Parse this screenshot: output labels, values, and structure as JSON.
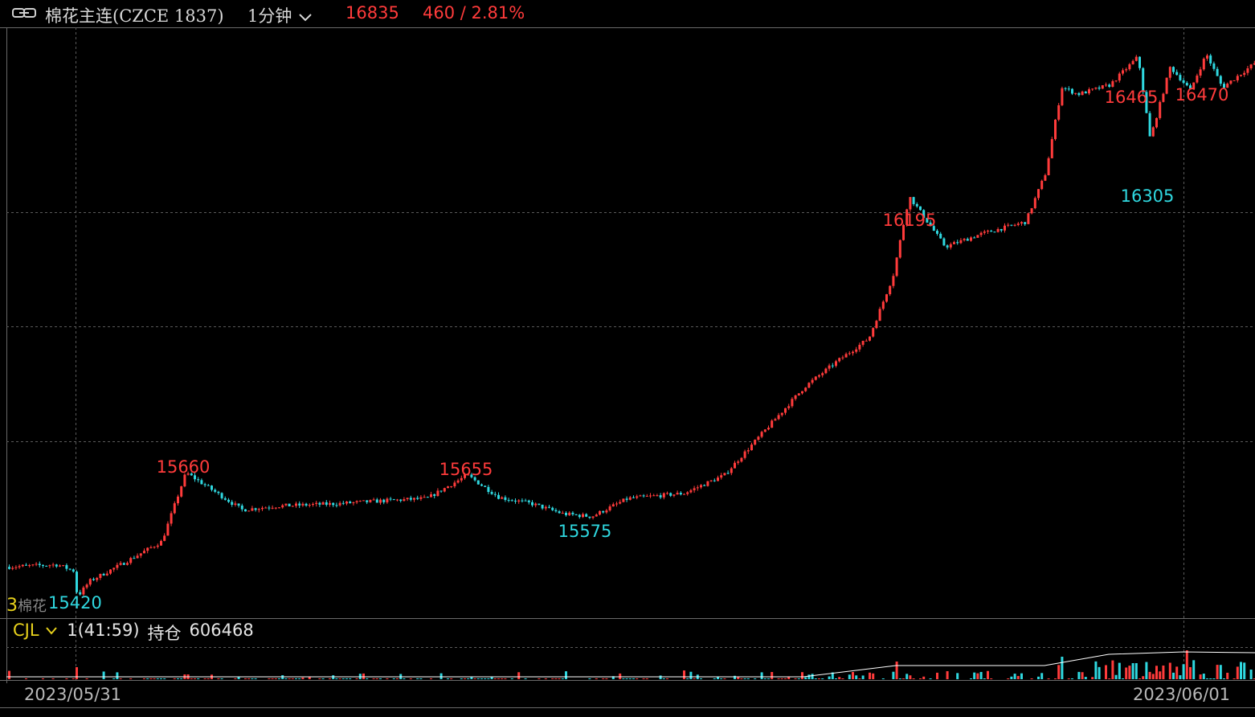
{
  "header": {
    "link_icon": "link-icon",
    "symbol": "棉花主连(CZCE 1837)",
    "period": "1分钟",
    "price": "16835",
    "change": "460 / 2.81%"
  },
  "colors": {
    "up": "#ff3b3b",
    "down": "#2fd8e0",
    "grid": "#5a5a5a",
    "vol_line": "#ffffff",
    "indicator": "#e8d21c"
  },
  "main": {
    "corner_text": "3",
    "corner_label": "棉花"
  },
  "sub_panel": {
    "indicator": "CJL",
    "value": "1(41:59)",
    "oi_label": "持仓",
    "oi_value": "606468"
  },
  "axis": {
    "date_start": "2023/05/31",
    "date_end": "2023/06/01"
  },
  "chart_data": {
    "type": "candlestick",
    "interval": "1 minute",
    "ylim": [
      15380,
      16520
    ],
    "series_path": [
      [
        0,
        15477
      ],
      [
        70,
        15482
      ],
      [
        90,
        15470
      ],
      [
        95,
        15420
      ],
      [
        110,
        15450
      ],
      [
        150,
        15483
      ],
      [
        200,
        15527
      ],
      [
        230,
        15660
      ],
      [
        300,
        15588
      ],
      [
        340,
        15595
      ],
      [
        420,
        15600
      ],
      [
        470,
        15605
      ],
      [
        530,
        15610
      ],
      [
        580,
        15655
      ],
      [
        620,
        15612
      ],
      [
        660,
        15600
      ],
      [
        700,
        15580
      ],
      [
        735,
        15575
      ],
      [
        780,
        15610
      ],
      [
        850,
        15620
      ],
      [
        900,
        15655
      ],
      [
        935,
        15715
      ],
      [
        960,
        15758
      ],
      [
        1000,
        15826
      ],
      [
        1040,
        15875
      ],
      [
        1080,
        15920
      ],
      [
        1110,
        16040
      ],
      [
        1130,
        16195
      ],
      [
        1175,
        16097
      ],
      [
        1220,
        16122
      ],
      [
        1275,
        16145
      ],
      [
        1300,
        16240
      ],
      [
        1320,
        16406
      ],
      [
        1340,
        16392
      ],
      [
        1380,
        16410
      ],
      [
        1415,
        16465
      ],
      [
        1430,
        16305
      ],
      [
        1455,
        16445
      ],
      [
        1480,
        16400
      ],
      [
        1500,
        16470
      ],
      [
        1520,
        16405
      ],
      [
        1560,
        16452
      ]
    ],
    "annotations": [
      {
        "label": "15420",
        "kind": "low"
      },
      {
        "label": "15660",
        "kind": "high"
      },
      {
        "label": "15655",
        "kind": "high"
      },
      {
        "label": "15575",
        "kind": "low"
      },
      {
        "label": "16195",
        "kind": "high"
      },
      {
        "label": "16465",
        "kind": "high"
      },
      {
        "label": "16305",
        "kind": "low"
      },
      {
        "label": "16470",
        "kind": "high"
      }
    ],
    "volume": {
      "indicator": "CJL",
      "spikes": [
        [
          95,
          15
        ],
        [
          230,
          6
        ],
        [
          1115,
          22
        ],
        [
          1320,
          28
        ],
        [
          1410,
          20
        ],
        [
          1475,
          36
        ],
        [
          1555,
          12
        ]
      ]
    },
    "grid": true
  }
}
